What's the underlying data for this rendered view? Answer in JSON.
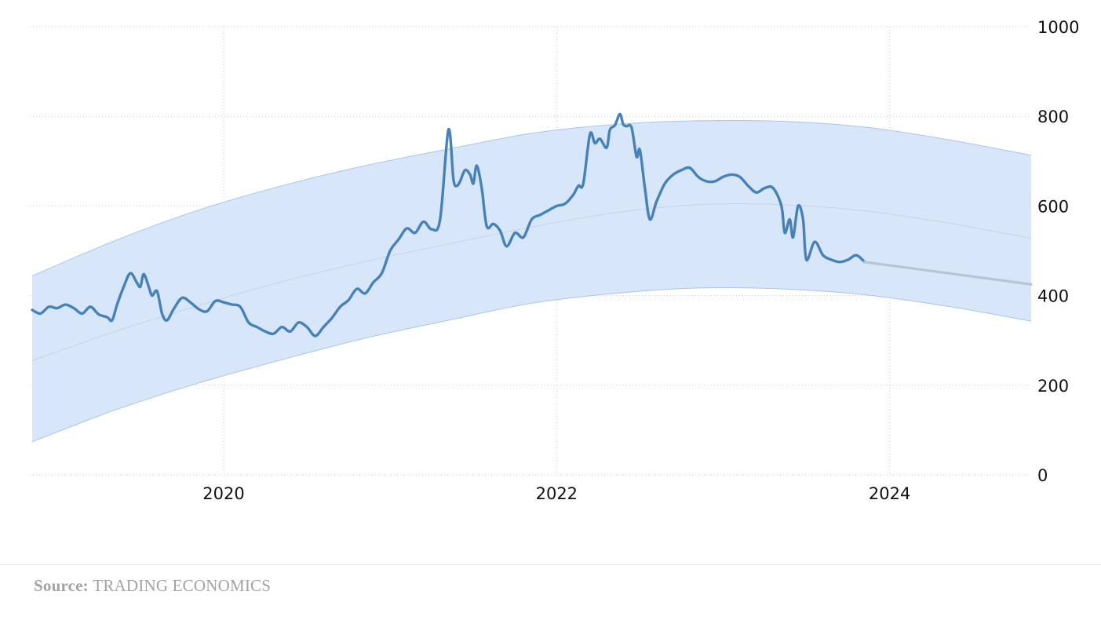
{
  "source": {
    "label": "Source:",
    "name": "TRADING ECONOMICS"
  },
  "colors": {
    "series": "#4682b8",
    "forecast": "#b8c4d4",
    "band_fill": "#d8e6f9",
    "band_edge": "#a9c5ea",
    "trend": "#c6d3e3"
  },
  "chart_data": {
    "type": "line",
    "title": "",
    "xlabel": "",
    "ylabel": "",
    "ylim": [
      0,
      1000
    ],
    "xlim": [
      2018.85,
      2024.85
    ],
    "y_axis_position": "right",
    "grid": true,
    "x_ticks": [
      2020,
      2022,
      2024
    ],
    "x_tick_labels": [
      "2020",
      "2022",
      "2024"
    ],
    "y_ticks": [
      0,
      200,
      400,
      600,
      800,
      1000
    ],
    "y_tick_labels": [
      "0",
      "200",
      "400",
      "600",
      "800",
      "1000"
    ],
    "series": [
      {
        "role": "actual",
        "x": [
          2018.85,
          2018.9,
          2018.95,
          2019.0,
          2019.05,
          2019.1,
          2019.15,
          2019.2,
          2019.25,
          2019.3,
          2019.33,
          2019.36,
          2019.4,
          2019.44,
          2019.48,
          2019.5,
          2019.52,
          2019.55,
          2019.57,
          2019.6,
          2019.63,
          2019.66,
          2019.7,
          2019.75,
          2019.8,
          2019.85,
          2019.9,
          2019.95,
          2020.0,
          2020.05,
          2020.1,
          2020.15,
          2020.2,
          2020.25,
          2020.3,
          2020.35,
          2020.4,
          2020.45,
          2020.5,
          2020.55,
          2020.6,
          2020.65,
          2020.7,
          2020.75,
          2020.8,
          2020.85,
          2020.9,
          2020.95,
          2021.0,
          2021.05,
          2021.1,
          2021.15,
          2021.2,
          2021.25,
          2021.3,
          2021.35,
          2021.38,
          2021.4,
          2021.42,
          2021.45,
          2021.48,
          2021.5,
          2021.52,
          2021.55,
          2021.58,
          2021.62,
          2021.66,
          2021.7,
          2021.75,
          2021.8,
          2021.85,
          2021.9,
          2021.95,
          2022.0,
          2022.05,
          2022.1,
          2022.13,
          2022.16,
          2022.2,
          2022.23,
          2022.26,
          2022.3,
          2022.32,
          2022.35,
          2022.38,
          2022.4,
          2022.42,
          2022.45,
          2022.48,
          2022.5,
          2022.53,
          2022.56,
          2022.6,
          2022.65,
          2022.7,
          2022.75,
          2022.8,
          2022.85,
          2022.9,
          2022.95,
          2023.0,
          2023.05,
          2023.1,
          2023.15,
          2023.2,
          2023.25,
          2023.3,
          2023.35,
          2023.37,
          2023.4,
          2023.42,
          2023.45,
          2023.48,
          2023.5,
          2023.55,
          2023.6,
          2023.65,
          2023.7,
          2023.75,
          2023.8,
          2023.85
        ],
        "y": [
          368,
          360,
          375,
          372,
          380,
          372,
          360,
          375,
          358,
          352,
          345,
          380,
          420,
          450,
          428,
          420,
          448,
          420,
          400,
          410,
          360,
          345,
          370,
          395,
          385,
          370,
          365,
          388,
          385,
          380,
          375,
          340,
          330,
          320,
          315,
          330,
          320,
          340,
          330,
          310,
          330,
          350,
          375,
          390,
          415,
          405,
          430,
          450,
          500,
          525,
          550,
          540,
          565,
          548,
          570,
          770,
          660,
          645,
          655,
          680,
          670,
          650,
          690,
          640,
          555,
          560,
          545,
          510,
          540,
          530,
          570,
          580,
          590,
          600,
          605,
          625,
          645,
          650,
          760,
          740,
          750,
          730,
          770,
          780,
          805,
          782,
          778,
          775,
          710,
          725,
          640,
          570,
          610,
          650,
          670,
          680,
          685,
          665,
          655,
          655,
          665,
          670,
          665,
          645,
          630,
          640,
          640,
          600,
          540,
          570,
          530,
          600,
          570,
          480,
          520,
          490,
          480,
          475,
          480,
          490,
          475
        ],
        "color": "#4682b8"
      },
      {
        "role": "forecast",
        "x": [
          2023.85,
          2024.85
        ],
        "y": [
          475,
          425
        ],
        "color": "#b8c4d4"
      }
    ],
    "trend": {
      "x": [
        2018.85,
        2019.35,
        2019.85,
        2020.35,
        2020.85,
        2021.35,
        2021.85,
        2022.35,
        2022.85,
        2023.35,
        2023.85,
        2024.35,
        2024.85
      ],
      "y": [
        255,
        320,
        378,
        431,
        476,
        515,
        553,
        585,
        603,
        603,
        589,
        562,
        528
      ]
    },
    "band": {
      "x": [
        2018.85,
        2019.35,
        2019.85,
        2020.35,
        2020.85,
        2021.35,
        2021.85,
        2022.35,
        2022.85,
        2023.35,
        2023.85,
        2024.35,
        2024.85
      ],
      "upper": [
        444,
        523,
        591,
        645,
        690,
        727,
        762,
        782,
        790,
        789,
        776,
        748,
        713
      ],
      "lower": [
        74,
        145,
        205,
        257,
        305,
        345,
        383,
        405,
        417,
        415,
        402,
        376,
        343
      ]
    }
  }
}
